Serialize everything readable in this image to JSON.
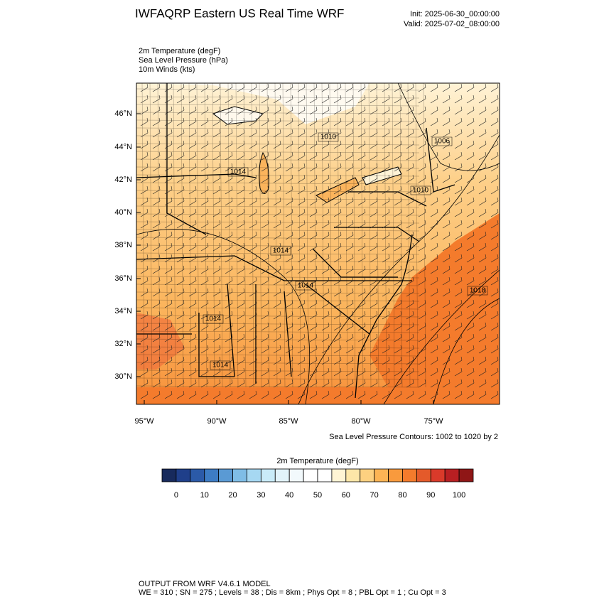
{
  "header": {
    "title": "IWFAQRP Eastern US Real Time WRF",
    "init": "Init: 2025-06-30_00:00:00",
    "valid": "Valid: 2025-07-02_08:00:00"
  },
  "fields": [
    "2m Temperature   (degF)",
    "Sea Level Pressure   (hPa)",
    "10m Winds   (kts)"
  ],
  "map": {
    "lat_labels": [
      "46°N",
      "44°N",
      "42°N",
      "40°N",
      "38°N",
      "36°N",
      "34°N",
      "32°N",
      "30°N"
    ],
    "lon_labels": [
      "95°W",
      "90°W",
      "85°W",
      "80°W",
      "75°W"
    ],
    "contour_labels": [
      "1010",
      "1006",
      "1014",
      "1010",
      "1014",
      "1014",
      "1018",
      "1014",
      "1014"
    ]
  },
  "contour_note": "Sea Level Pressure Contours: 1002 to 1020 by 2",
  "colorbar": {
    "title": "2m Temperature   (degF)",
    "labels": [
      0,
      10,
      20,
      30,
      40,
      50,
      60,
      70,
      80,
      90,
      100
    ],
    "colors": [
      "#172a5c",
      "#1f3f8a",
      "#2b5aa8",
      "#3d7cc4",
      "#5a9ad4",
      "#7fbde6",
      "#a6d8f2",
      "#c9ebf8",
      "#e2f3fa",
      "#f2f9fc",
      "#ffffff",
      "#ffffff",
      "#fff4d4",
      "#fde6a8",
      "#fdd080",
      "#fdb455",
      "#f99a3d",
      "#f47b2c",
      "#e45a2a",
      "#d93a2a",
      "#b81f22",
      "#8f1616"
    ]
  },
  "footer": {
    "line1": "OUTPUT FROM WRF V4.6.1 MODEL",
    "line2": "WE = 310 ; SN = 275 ; Levels = 38 ; Dis = 8km ; Phys Opt = 8 ; PBL Opt = 1 ; Cu Opt = 3"
  }
}
